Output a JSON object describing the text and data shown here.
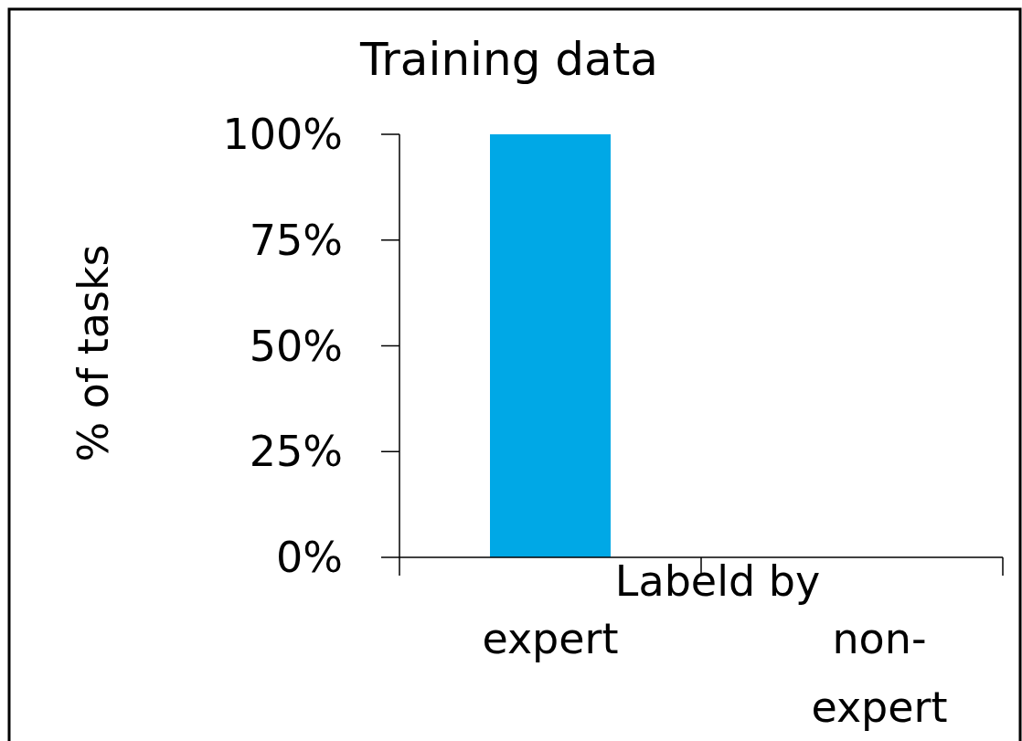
{
  "chart_data": {
    "type": "bar",
    "title": "Training data",
    "ylabel": "% of tasks",
    "xlabel": "Labeld by",
    "categories": [
      "expert",
      "non-expert"
    ],
    "values": [
      100,
      0
    ],
    "color": "#00a8e6",
    "ylim": [
      0,
      100
    ],
    "yticks": [
      {
        "value": 0,
        "label": "0%"
      },
      {
        "value": 25,
        "label": "25%"
      },
      {
        "value": 50,
        "label": "50%"
      },
      {
        "value": 75,
        "label": "75%"
      },
      {
        "value": 100,
        "label": "100%"
      }
    ],
    "grid": false
  }
}
